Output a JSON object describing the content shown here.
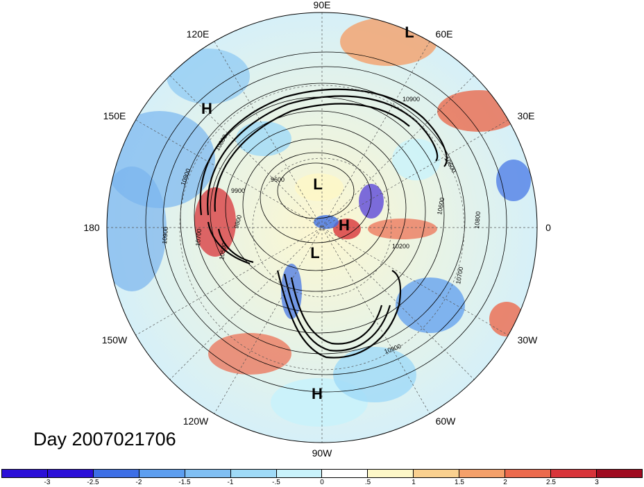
{
  "map": {
    "title_text": "Day 2007021706",
    "longitude_labels": {
      "lon_90E": "90E",
      "lon_120E": "120E",
      "lon_60E": "60E",
      "lon_150E": "150E",
      "lon_30E": "30E",
      "lon_180": "180",
      "lon_0": "0",
      "lon_150W": "150W",
      "lon_30W": "30W",
      "lon_120W": "120W",
      "lon_60W": "60W",
      "lon_90W": "90W"
    },
    "pressure_centers": [
      "L",
      "H",
      "L",
      "H",
      "L",
      "H"
    ],
    "contour_labels": [
      "10900",
      "10800",
      "9600",
      "9900",
      "9800",
      "10500",
      "10700",
      "10900",
      "10600",
      "10200",
      "10800",
      "10700",
      "10900",
      "10900",
      "10600",
      "10000"
    ],
    "colors": {
      "neg_strong": "#1a1fd0",
      "neg_mid": "#6aa8ef",
      "neg_light": "#bfeef9",
      "pos_light": "#fdf4c4",
      "pos_mid": "#f6ab7b",
      "pos_strong": "#b41024"
    }
  },
  "colorbar": {
    "ticks": [
      "-3",
      "-2.5",
      "-2",
      "-1.5",
      "-1",
      "-.5",
      "0",
      ".5",
      "1",
      "1.5",
      "2",
      "2.5",
      "3"
    ],
    "colors": [
      "#2b0fd8",
      "#3d6fe6",
      "#5d9eef",
      "#80bff3",
      "#9fdaf7",
      "#c9f2fb",
      "#ffffff",
      "#fdf7c8",
      "#f9d08f",
      "#f4a06a",
      "#ec6a4d",
      "#d8343a",
      "#9f0b20"
    ]
  }
}
